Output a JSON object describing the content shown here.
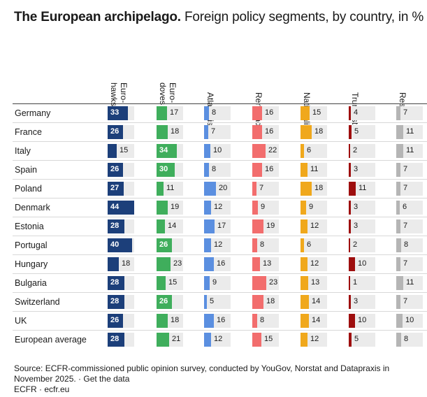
{
  "title": {
    "bold": "The European archipelago.",
    "rest": "Foreign policy segments, by country, in %"
  },
  "columns": [
    {
      "key": "eurohawks",
      "label_lines": [
        "Euro-",
        "hawks"
      ],
      "color": "#1c3f7a"
    },
    {
      "key": "eurodoves",
      "label_lines": [
        "Euro-",
        "doves"
      ],
      "color": "#3fae5c"
    },
    {
      "key": "atlanticists",
      "label_lines": [
        "Atlanticists"
      ],
      "color": "#5b8fe0"
    },
    {
      "key": "renegades",
      "label_lines": [
        "Renegades"
      ],
      "color": "#f26d6d"
    },
    {
      "key": "nationalists",
      "label_lines": [
        "Nationalists"
      ],
      "color": "#f0a81c"
    },
    {
      "key": "trumpists",
      "label_lines": [
        "Trumpists"
      ],
      "color": "#9e0e0e"
    },
    {
      "key": "rest",
      "label_lines": [
        "Rest"
      ],
      "color": "#b5b5b5"
    }
  ],
  "chart_data": {
    "type": "table",
    "title": "The European archipelago. Foreign policy segments, by country, in %",
    "categories": [
      "Germany",
      "France",
      "Italy",
      "Spain",
      "Poland",
      "Denmark",
      "Estonia",
      "Portugal",
      "Hungary",
      "Bulgaria",
      "Switzerland",
      "UK",
      "European average"
    ],
    "series": [
      {
        "name": "Euro-hawks",
        "values": [
          33,
          26,
          15,
          26,
          27,
          44,
          28,
          40,
          18,
          28,
          28,
          26,
          28
        ]
      },
      {
        "name": "Euro-doves",
        "values": [
          17,
          18,
          34,
          30,
          11,
          19,
          14,
          26,
          23,
          15,
          26,
          18,
          21
        ]
      },
      {
        "name": "Atlanticists",
        "values": [
          8,
          7,
          10,
          8,
          20,
          12,
          17,
          12,
          16,
          9,
          5,
          16,
          12
        ]
      },
      {
        "name": "Renegades",
        "values": [
          16,
          16,
          22,
          16,
          7,
          9,
          19,
          8,
          13,
          23,
          18,
          8,
          15
        ]
      },
      {
        "name": "Nationalists",
        "values": [
          15,
          18,
          6,
          11,
          18,
          9,
          12,
          6,
          12,
          13,
          14,
          14,
          12
        ]
      },
      {
        "name": "Trumpists",
        "values": [
          4,
          5,
          2,
          3,
          11,
          3,
          3,
          2,
          10,
          1,
          3,
          10,
          5
        ]
      },
      {
        "name": "Rest",
        "values": [
          7,
          11,
          11,
          7,
          7,
          6,
          7,
          8,
          7,
          11,
          7,
          10,
          8
        ]
      }
    ]
  },
  "footer": {
    "source": "Source: ECFR-commissioned public opinion survey, conducted by YouGov, Norstat and Datapraxis in November 2025. · Get the data",
    "credit": "ECFR · ecfr.eu"
  }
}
